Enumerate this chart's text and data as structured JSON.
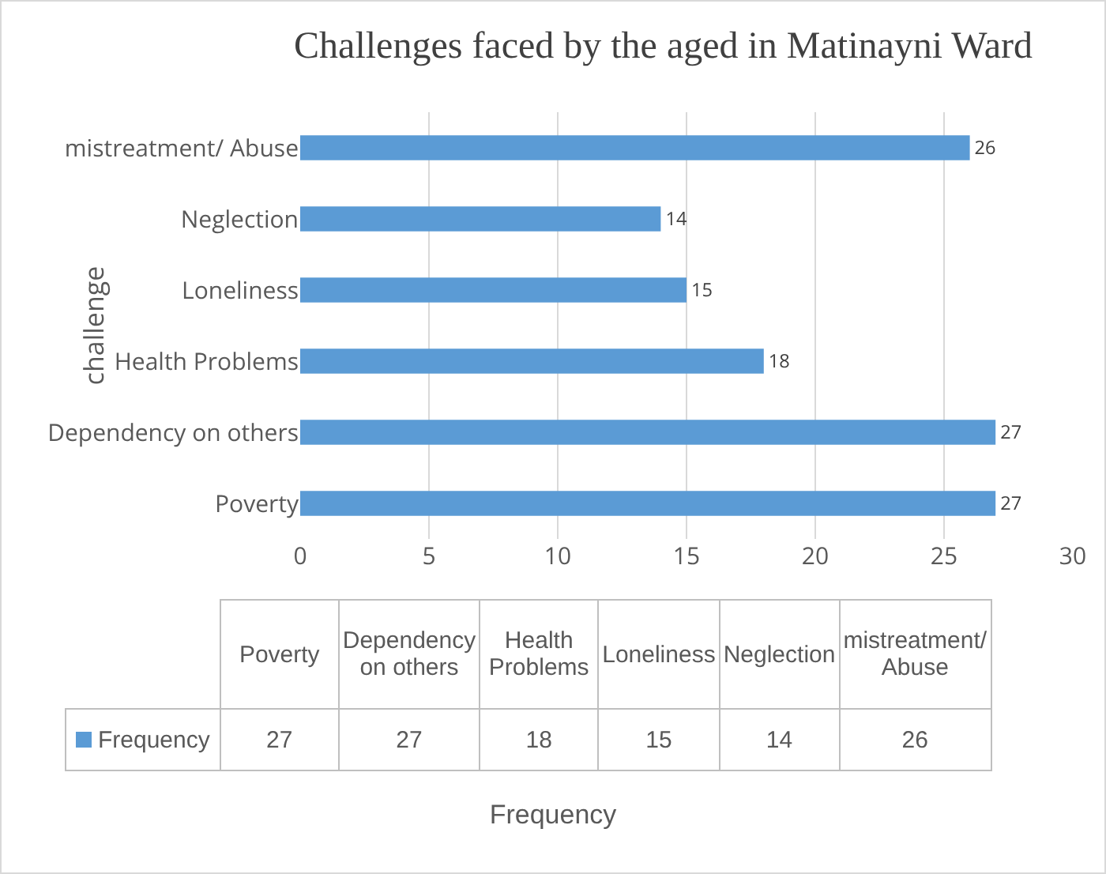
{
  "chart_data": [
    {
      "type": "bar",
      "orientation": "horizontal",
      "title": "Challenges faced by the aged in Matinayni Ward",
      "annotations": [
        "Frequency"
      ],
      "ylabel": "challenge",
      "categories": [
        "mistreatment/ Abuse",
        "Neglection",
        "Loneliness",
        "Health Problems",
        "Dependency on others",
        "Poverty"
      ],
      "series": [
        {
          "color": "#5b9bd5",
          "values": [
            26,
            14,
            15,
            18,
            27,
            27
          ]
        }
      ],
      "xlim": [
        0,
        30
      ],
      "xticks": [
        0,
        5,
        10,
        15,
        20,
        25,
        30
      ],
      "grid": "x",
      "data_labels": true
    },
    {
      "type": "other",
      "categories": [
        "Poverty",
        "Dependency on others",
        "Health Problems",
        "Loneliness",
        "Neglection",
        "mistreatment/ Abuse"
      ],
      "series": [
        {
          "name": "Frequency",
          "color": "#5b9bd5",
          "values": [
            27,
            27,
            18,
            15,
            14,
            26
          ]
        }
      ],
      "legend": "left",
      "data_labels": true
    }
  ]
}
